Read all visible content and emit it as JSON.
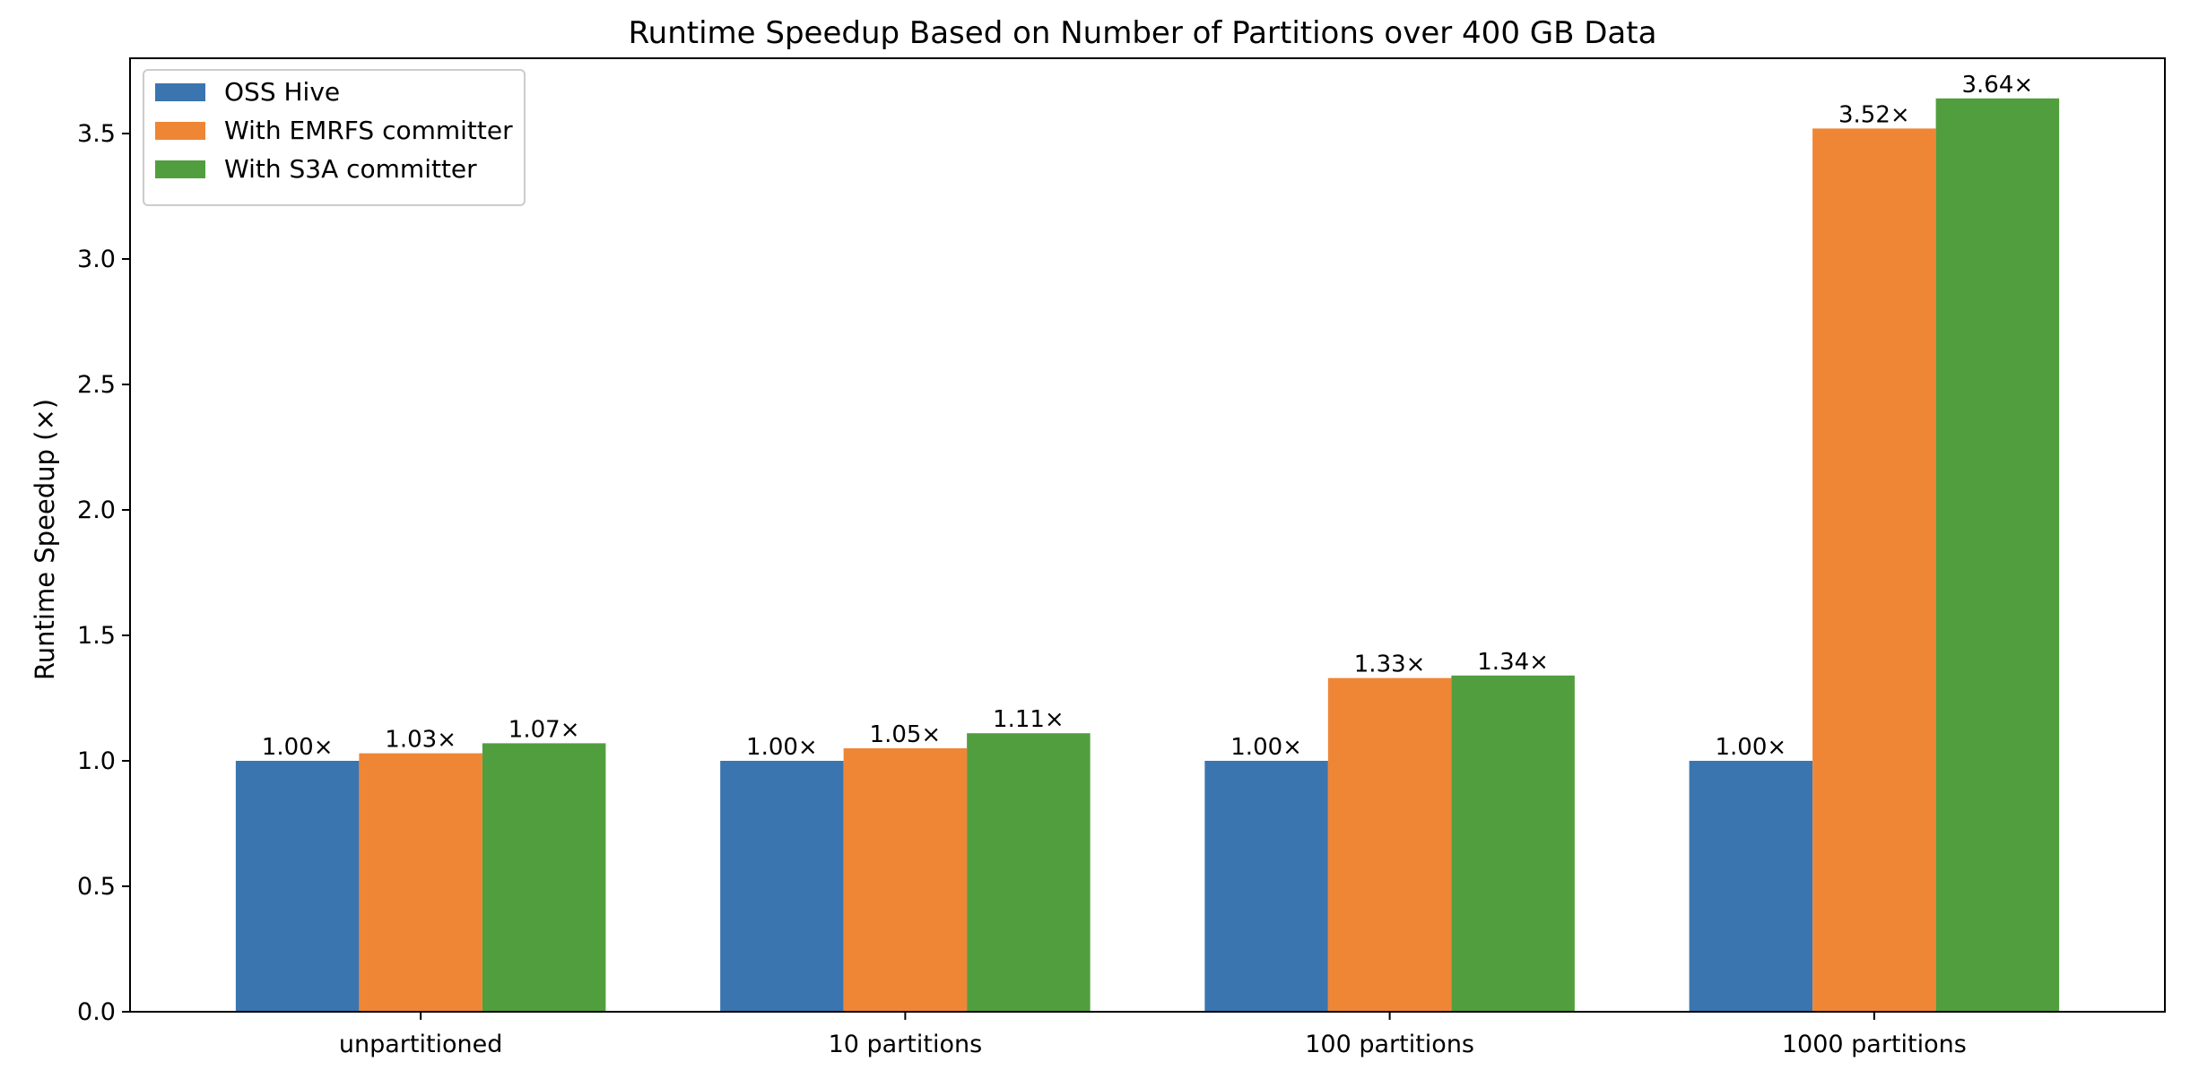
{
  "chart_data": {
    "type": "bar",
    "title": "Runtime Speedup Based on Number of Partitions over 400 GB Data",
    "xlabel": "",
    "ylabel": "Runtime Speedup (×)",
    "ylim": [
      0,
      3.8
    ],
    "yticks": [
      "0.0",
      "0.5",
      "1.0",
      "1.5",
      "2.0",
      "2.5",
      "3.0",
      "3.5"
    ],
    "grid": false,
    "legend_position": "top-left",
    "categories": [
      "unpartitioned",
      "10 partitions",
      "100 partitions",
      "1000 partitions"
    ],
    "series": [
      {
        "name": "OSS Hive",
        "color": "#3a75af",
        "values": [
          1.0,
          1.0,
          1.0,
          1.0
        ],
        "labels": [
          "1.00×",
          "1.00×",
          "1.00×",
          "1.00×"
        ]
      },
      {
        "name": "With EMRFS committer",
        "color": "#ef8636",
        "values": [
          1.03,
          1.05,
          1.33,
          3.52
        ],
        "labels": [
          "1.03×",
          "1.05×",
          "1.33×",
          "3.52×"
        ]
      },
      {
        "name": "With S3A committer",
        "color": "#519e3e",
        "values": [
          1.07,
          1.11,
          1.34,
          3.64
        ],
        "labels": [
          "1.07×",
          "1.11×",
          "1.34×",
          "3.64×"
        ]
      }
    ]
  }
}
